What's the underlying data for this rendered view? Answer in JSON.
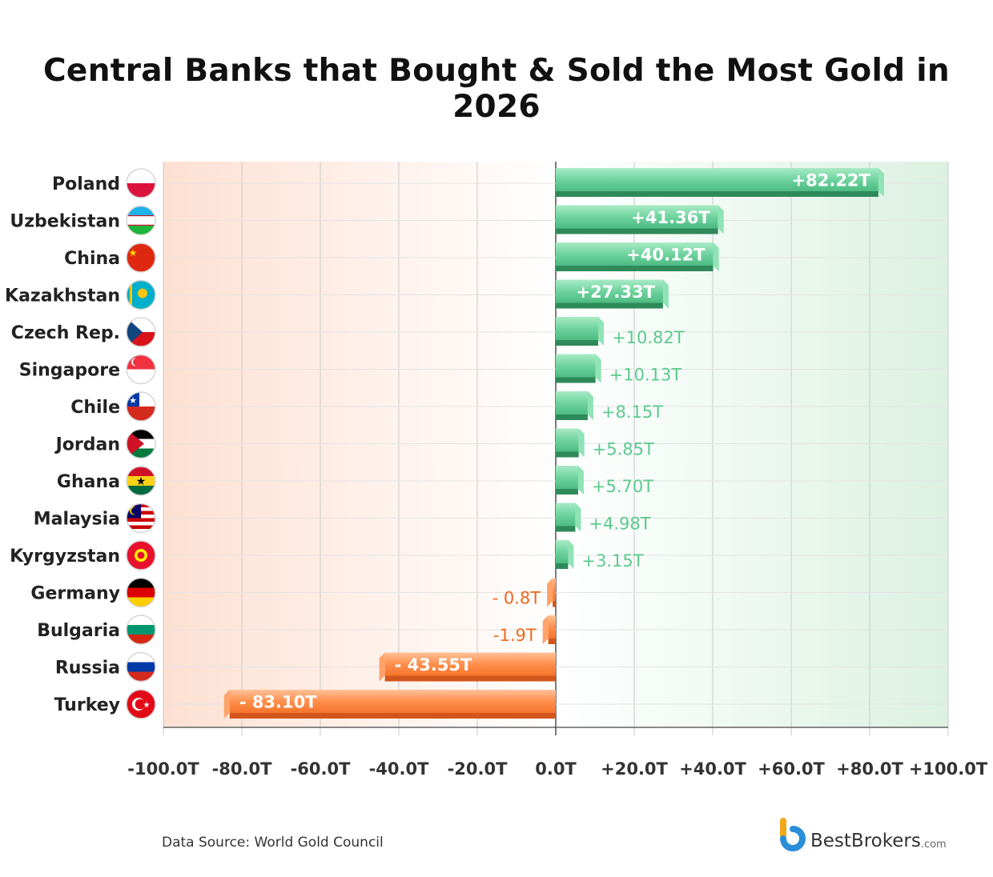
{
  "title": "Central Banks that Bought & Sold the Most Gold in 2026",
  "source": "Data Source: World Gold Council",
  "brand": {
    "name": "BestBrokers",
    "suffix": ".com"
  },
  "colors": {
    "positive": "#5cc98f",
    "positive_dark": "#2f8a5a",
    "negative": "#ff8438",
    "negative_dark": "#d2561b",
    "positive_label": "#5cc98f",
    "negative_label": "#ef6a1f"
  },
  "chart_data": {
    "type": "bar",
    "orientation": "horizontal",
    "title": "Central Banks that Bought & Sold the Most Gold in 2026",
    "xlabel": "",
    "ylabel": "",
    "xlim": [
      -100,
      100
    ],
    "grid": true,
    "categories": [
      "Poland",
      "Uzbekistan",
      "China",
      "Kazakhstan",
      "Czech Rep.",
      "Singapore",
      "Chile",
      "Jordan",
      "Ghana",
      "Malaysia",
      "Kyrgyzstan",
      "Germany",
      "Bulgaria",
      "Russia",
      "Turkey"
    ],
    "values": [
      82.22,
      41.36,
      40.12,
      27.33,
      10.82,
      10.13,
      8.15,
      5.85,
      5.7,
      4.98,
      3.15,
      -0.8,
      -1.9,
      -43.55,
      -83.1
    ],
    "value_labels": [
      "+82.22T",
      "+41.36T",
      "+40.12T",
      "+27.33T",
      "+10.82T",
      "+10.13T",
      "+8.15T",
      "+5.85T",
      "+5.70T",
      "+4.98T",
      "+3.15T",
      "- 0.8T",
      "-1.9T",
      "- 43.55T",
      "- 83.10T"
    ],
    "x_ticks": [
      -100,
      -80,
      -60,
      -40,
      -20,
      0,
      20,
      40,
      60,
      80,
      100
    ],
    "x_tick_labels": [
      "-100.0T",
      "-80.0T",
      "-60.0T",
      "-40.0T",
      "-20.0T",
      "0.0T",
      "+20.0T",
      "+40.0T",
      "+60.0T",
      "+80.0T",
      "+100.0T"
    ]
  }
}
